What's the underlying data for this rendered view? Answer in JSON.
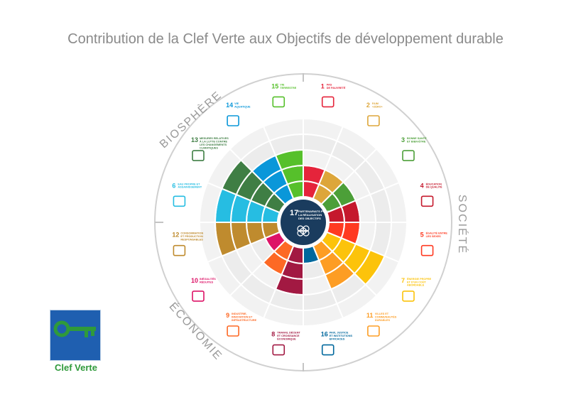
{
  "title": "Contribution de la Clef Verte aux Objectifs de développement durable",
  "rings": {
    "biosphere": "BIOSPHÈRE",
    "societe": "SOCIÉTÉ",
    "economie": "ÉCONOMIE"
  },
  "center": {
    "number": "17",
    "text": [
      "PARTENARIATS POUR",
      "LA RÉALISATION",
      "DES OBJECTIFS"
    ],
    "color": "#1a3c5e"
  },
  "sdgs": [
    {
      "num": "1",
      "lines": [
        "PAS",
        "DE PAUVRETÉ"
      ],
      "color": "#e5243b",
      "icon": "people-icon",
      "level": 2
    },
    {
      "num": "2",
      "lines": [
        "FAIM",
        "«ZÉRO»"
      ],
      "color": "#dda63a",
      "icon": "food-bowl-icon",
      "level": 2
    },
    {
      "num": "3",
      "lines": [
        "BONNE SANTÉ",
        "ET BIEN-ÊTRE"
      ],
      "color": "#4c9f38",
      "icon": "heartbeat-icon",
      "level": 2
    },
    {
      "num": "4",
      "lines": [
        "ÉDUCATION",
        "DE QUALITÉ"
      ],
      "color": "#c5192d",
      "icon": "book-icon",
      "level": 2
    },
    {
      "num": "5",
      "lines": [
        "ÉGALITÉ ENTRE",
        "LES SEXES"
      ],
      "color": "#ff3a21",
      "icon": "gender-icon",
      "level": 2
    },
    {
      "num": "7",
      "lines": [
        "ÉNERGIE PROPRE",
        "ET D'UN COÛT",
        "ABORDABLE"
      ],
      "color": "#fcc30b",
      "icon": "sun-icon",
      "level": 4
    },
    {
      "num": "11",
      "lines": [
        "VILLES ET",
        "COMMUNAUTÉS",
        "DURABLES"
      ],
      "color": "#fd9d24",
      "icon": "city-icon",
      "level": 3
    },
    {
      "num": "16",
      "lines": [
        "PAIX, JUSTICE",
        "ET INSTITUTIONS",
        "EFFICACES"
      ],
      "color": "#00689d",
      "icon": "dove-icon",
      "level": 1
    },
    {
      "num": "8",
      "lines": [
        "TRAVAIL DÉCENT",
        "ET CROISSANCE",
        "ÉCONOMIQUE"
      ],
      "color": "#a21942",
      "icon": "growth-chart-icon",
      "level": 3
    },
    {
      "num": "9",
      "lines": [
        "INDUSTRIE,",
        "INNOVATION ET",
        "INFRASTRUCTURE"
      ],
      "color": "#fd6925",
      "icon": "cubes-icon",
      "level": 2
    },
    {
      "num": "10",
      "lines": [
        "INÉGALITÉS",
        "RÉDUITES"
      ],
      "color": "#dd1367",
      "icon": "equality-icon",
      "level": 1
    },
    {
      "num": "12",
      "lines": [
        "CONSOMMATION",
        "ET PRODUCTION",
        "RESPONSABLES"
      ],
      "color": "#bf8b2e",
      "icon": "infinity-icon",
      "level": 4
    },
    {
      "num": "6",
      "lines": [
        "EAU PROPRE ET",
        "ASSAINISSEMENT"
      ],
      "color": "#26bde2",
      "icon": "water-icon",
      "level": 4
    },
    {
      "num": "13",
      "lines": [
        "MESURES RELATIVES",
        "À LA LUTTE CONTRE",
        "LES CHANGEMENTS",
        "CLIMATIQUES"
      ],
      "color": "#3f7e44",
      "icon": "eye-globe-icon",
      "level": 4
    },
    {
      "num": "14",
      "lines": [
        "VIE",
        "AQUATIQUE"
      ],
      "color": "#0a97d9",
      "icon": "fish-icon",
      "level": 3
    },
    {
      "num": "15",
      "lines": [
        "VIE",
        "TERRESTRE"
      ],
      "color": "#56c02b",
      "icon": "tree-icon",
      "level": 3
    }
  ],
  "logo": {
    "label": "Clef Verte",
    "bg": "#1f5fb0",
    "key_color": "#2f9a3b"
  }
}
